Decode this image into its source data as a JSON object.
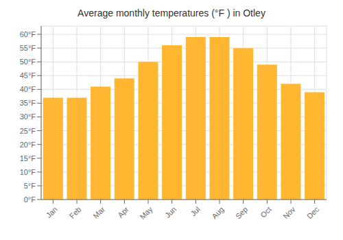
{
  "chart_data": {
    "type": "bar",
    "title": "Average monthly temperatures (°F ) in Otley",
    "categories": [
      "Jan",
      "Feb",
      "Mar",
      "Apr",
      "May",
      "Jun",
      "Jul",
      "Aug",
      "Sep",
      "Oct",
      "Nov",
      "Dec"
    ],
    "values": [
      37,
      37,
      41,
      44,
      50,
      56,
      59,
      59,
      55,
      49,
      42,
      39
    ],
    "color": "#FFB732",
    "ylim": [
      0,
      63
    ],
    "yticks": [
      {
        "value": 0,
        "label": "0°F"
      },
      {
        "value": 5,
        "label": "5°F"
      },
      {
        "value": 10,
        "label": "10°F"
      },
      {
        "value": 15,
        "label": "15°F"
      },
      {
        "value": 20,
        "label": "20°F"
      },
      {
        "value": 25,
        "label": "25°F"
      },
      {
        "value": 30,
        "label": "30°F"
      },
      {
        "value": 35,
        "label": "35°F"
      },
      {
        "value": 40,
        "label": "40°F"
      },
      {
        "value": 45,
        "label": "45°F"
      },
      {
        "value": 50,
        "label": "50°F"
      },
      {
        "value": 55,
        "label": "55°F"
      },
      {
        "value": 60,
        "label": "60°F"
      }
    ],
    "grid": true
  }
}
